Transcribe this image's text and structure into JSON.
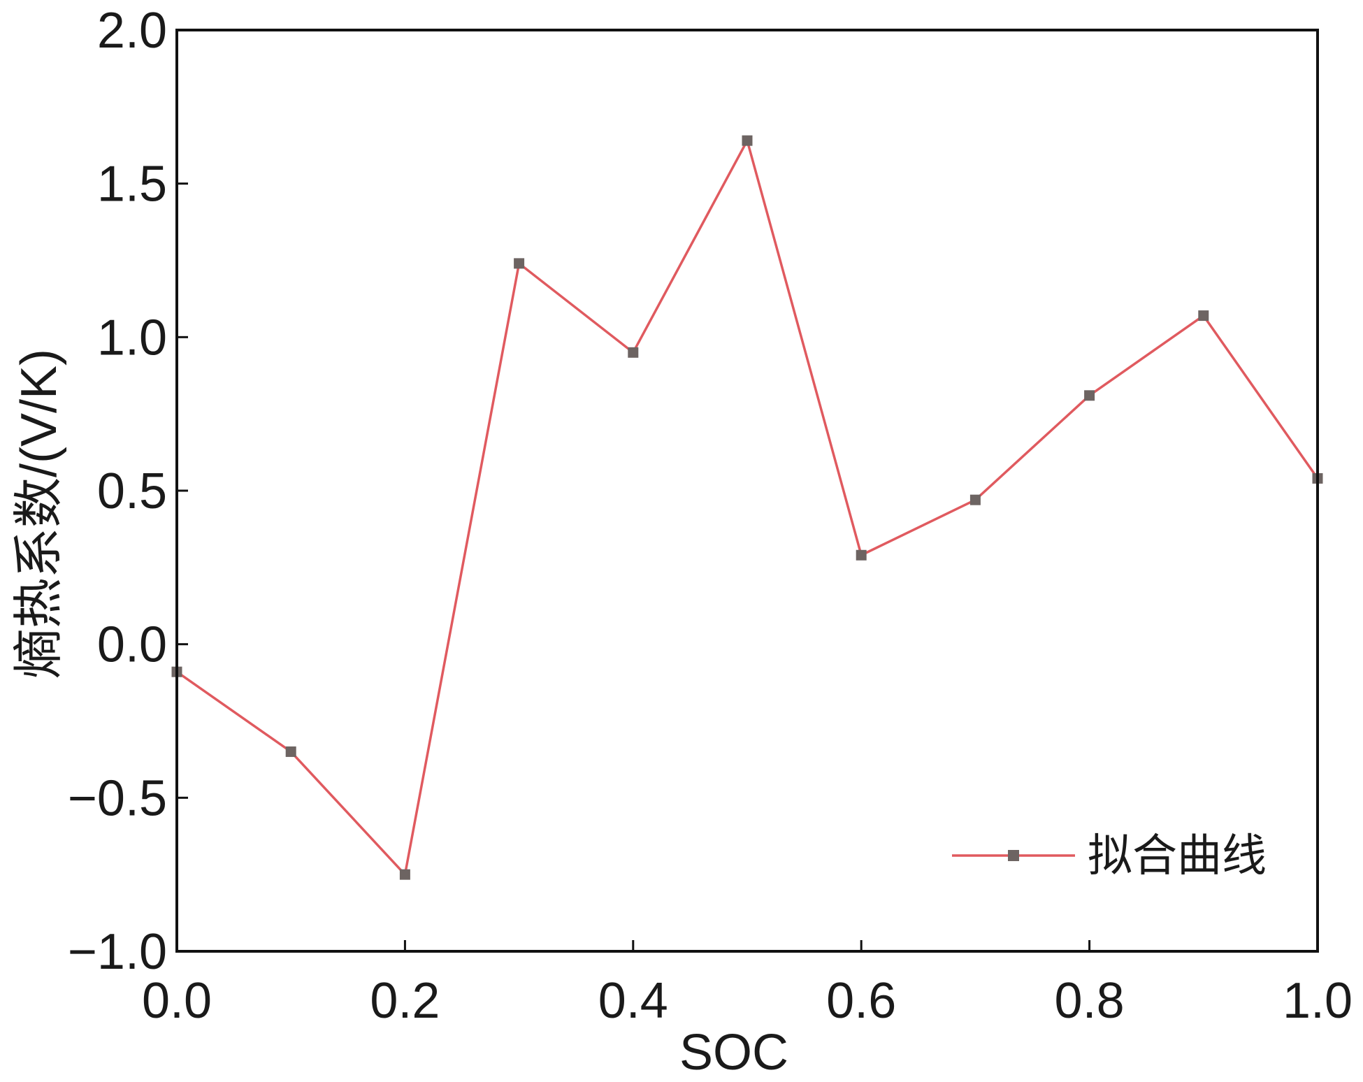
{
  "chart_data": {
    "type": "line",
    "title": "",
    "xlabel": "SOC",
    "ylabel": "熵热系数/(V/K)",
    "xlim": [
      0.0,
      1.0
    ],
    "ylim": [
      -1.0,
      2.0
    ],
    "xticks": [
      "0.0",
      "0.2",
      "0.4",
      "0.6",
      "0.8",
      "1.0"
    ],
    "yticks": [
      "−1.0",
      "−0.5",
      "0.0",
      "0.5",
      "1.0",
      "1.5",
      "2.0"
    ],
    "grid": false,
    "legend_position": "bottom-right",
    "series": [
      {
        "name": "拟合曲线",
        "line_color": "#e05a5f",
        "marker_color": "#6d6462",
        "marker": "square",
        "x": [
          0.0,
          0.1,
          0.2,
          0.3,
          0.4,
          0.5,
          0.6,
          0.7,
          0.8,
          0.9,
          1.0
        ],
        "y": [
          -0.09,
          -0.35,
          -0.75,
          1.24,
          0.95,
          1.64,
          0.29,
          0.47,
          0.81,
          1.07,
          0.54
        ]
      }
    ]
  }
}
